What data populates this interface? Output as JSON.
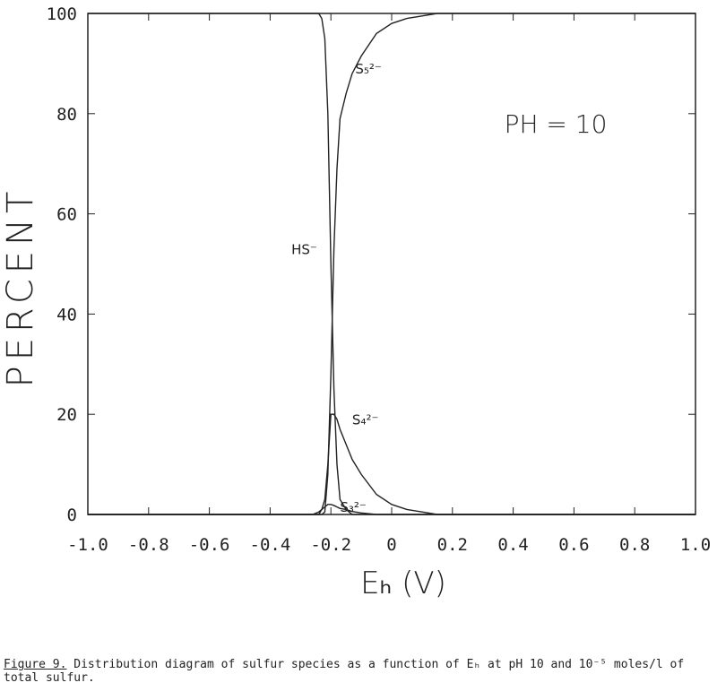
{
  "chart_data": {
    "type": "line",
    "x": [
      -1.0,
      -0.26,
      -0.24,
      -0.23,
      -0.22,
      -0.21,
      -0.2,
      -0.19,
      -0.18,
      -0.17,
      -0.15,
      -0.13,
      -0.1,
      -0.05,
      0,
      0.05,
      0.1,
      0.15,
      0.2,
      1.0
    ],
    "series": [
      {
        "name": "HS⁻",
        "color": "#222222",
        "values": [
          100,
          100,
          100,
          99,
          95,
          80,
          50,
          25,
          10,
          3,
          1,
          0,
          0,
          0,
          0,
          0,
          0,
          0,
          0,
          0
        ]
      },
      {
        "name": "S₅²⁻",
        "color": "#222222",
        "values": [
          0,
          0,
          0,
          0,
          0.5,
          8,
          28,
          53,
          69,
          79,
          84,
          88,
          91.5,
          96,
          98,
          99,
          99.5,
          100,
          100,
          100
        ]
      },
      {
        "name": "S₄²⁻",
        "color": "#222222",
        "values": [
          0,
          0,
          0,
          1,
          3,
          10,
          20,
          20,
          19,
          17,
          14,
          11,
          8,
          4,
          2,
          1,
          0.5,
          0,
          0,
          0
        ]
      },
      {
        "name": "S₃²⁻",
        "color": "#222222",
        "values": [
          0,
          0,
          0.5,
          1,
          1.5,
          2,
          2,
          1.8,
          1.5,
          1.2,
          1,
          0.6,
          0.3,
          0,
          0,
          0,
          0,
          0,
          0,
          0
        ]
      }
    ],
    "annotation": "PH = 10",
    "xlabel": "Eₕ (V)",
    "ylabel": "PERCENT",
    "xlim": [
      -1.0,
      1.0
    ],
    "ylim": [
      0,
      100
    ],
    "xticks": [
      {
        "value": -1.0,
        "label": "-1.0"
      },
      -0.8,
      -0.6,
      -0.4,
      -0.2,
      0,
      0.2,
      0.4,
      0.6,
      0.8,
      {
        "value": 1.0,
        "label": "1.0"
      }
    ],
    "yticks": [
      0,
      20,
      40,
      60,
      80,
      100
    ],
    "grid": false,
    "caption_label": "Figure 9.",
    "caption": "Distribution diagram of sulfur species as a function of Eₕ at pH 10 and 10⁻⁵ moles/l of total sulfur."
  }
}
